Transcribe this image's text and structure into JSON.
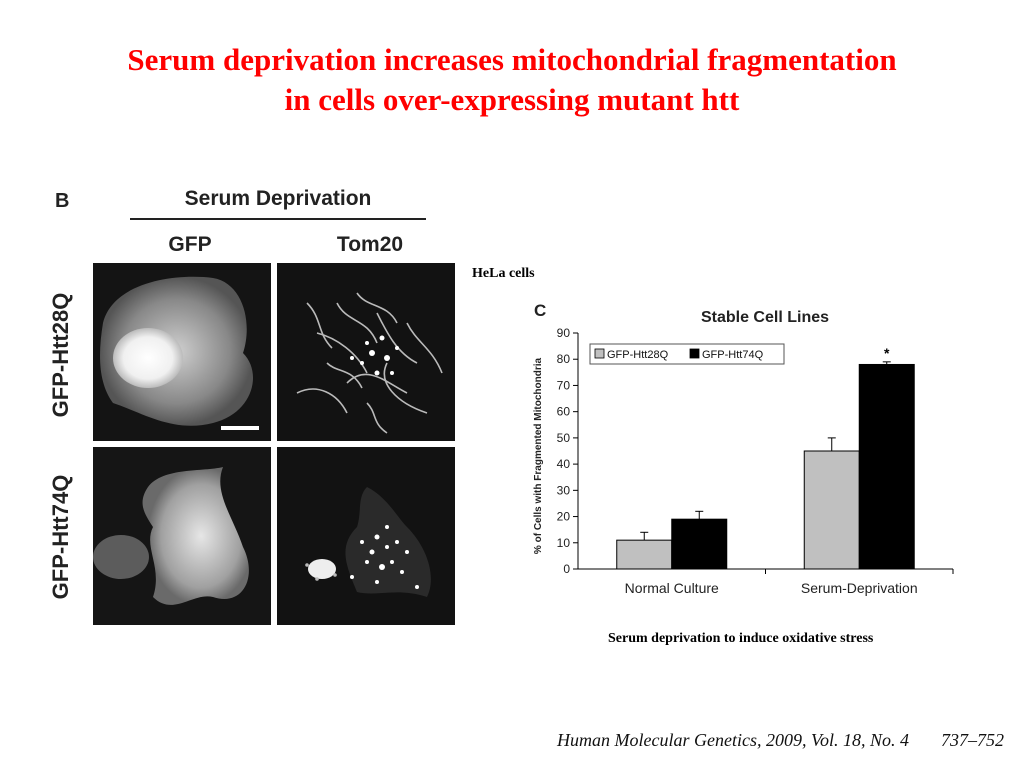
{
  "slide": {
    "title_line1": "Serum deprivation increases mitochondrial fragmentation",
    "title_line2": "in cells over-expressing mutant htt",
    "cell_type_note": "HeLa cells",
    "caption": "Serum deprivation to induce oxidative stress",
    "citation_text": "Human Molecular Genetics, 2009, Vol. 18, No. 4",
    "citation_pages": "737–752"
  },
  "panel_b": {
    "letter": "B",
    "heading": "Serum Deprivation",
    "col_labels": [
      "GFP",
      "Tom20"
    ],
    "row_labels": [
      "GFP-Htt28Q",
      "GFP-Htt74Q"
    ]
  },
  "chart_data": {
    "type": "bar",
    "panel_letter": "C",
    "title": "Stable Cell Lines",
    "ylabel": "% of Cells with Fragmented Mitochondria",
    "xlabel": "",
    "categories": [
      "Normal Culture",
      "Serum-Deprivation"
    ],
    "series": [
      {
        "name": "GFP-Htt28Q",
        "values": [
          11,
          45
        ],
        "errors": [
          3,
          5
        ],
        "color": "#c0c0c0"
      },
      {
        "name": "GFP-Htt74Q",
        "values": [
          19,
          78
        ],
        "errors": [
          3,
          1
        ],
        "color": "#000000"
      }
    ],
    "ylim": [
      0,
      90
    ],
    "yticks": [
      0,
      10,
      20,
      30,
      40,
      50,
      60,
      70,
      80,
      90
    ],
    "annotations": [
      {
        "text": "*",
        "category": "Serum-Deprivation",
        "series": "GFP-Htt74Q"
      }
    ],
    "legend_position": "top-left",
    "grid": false
  }
}
